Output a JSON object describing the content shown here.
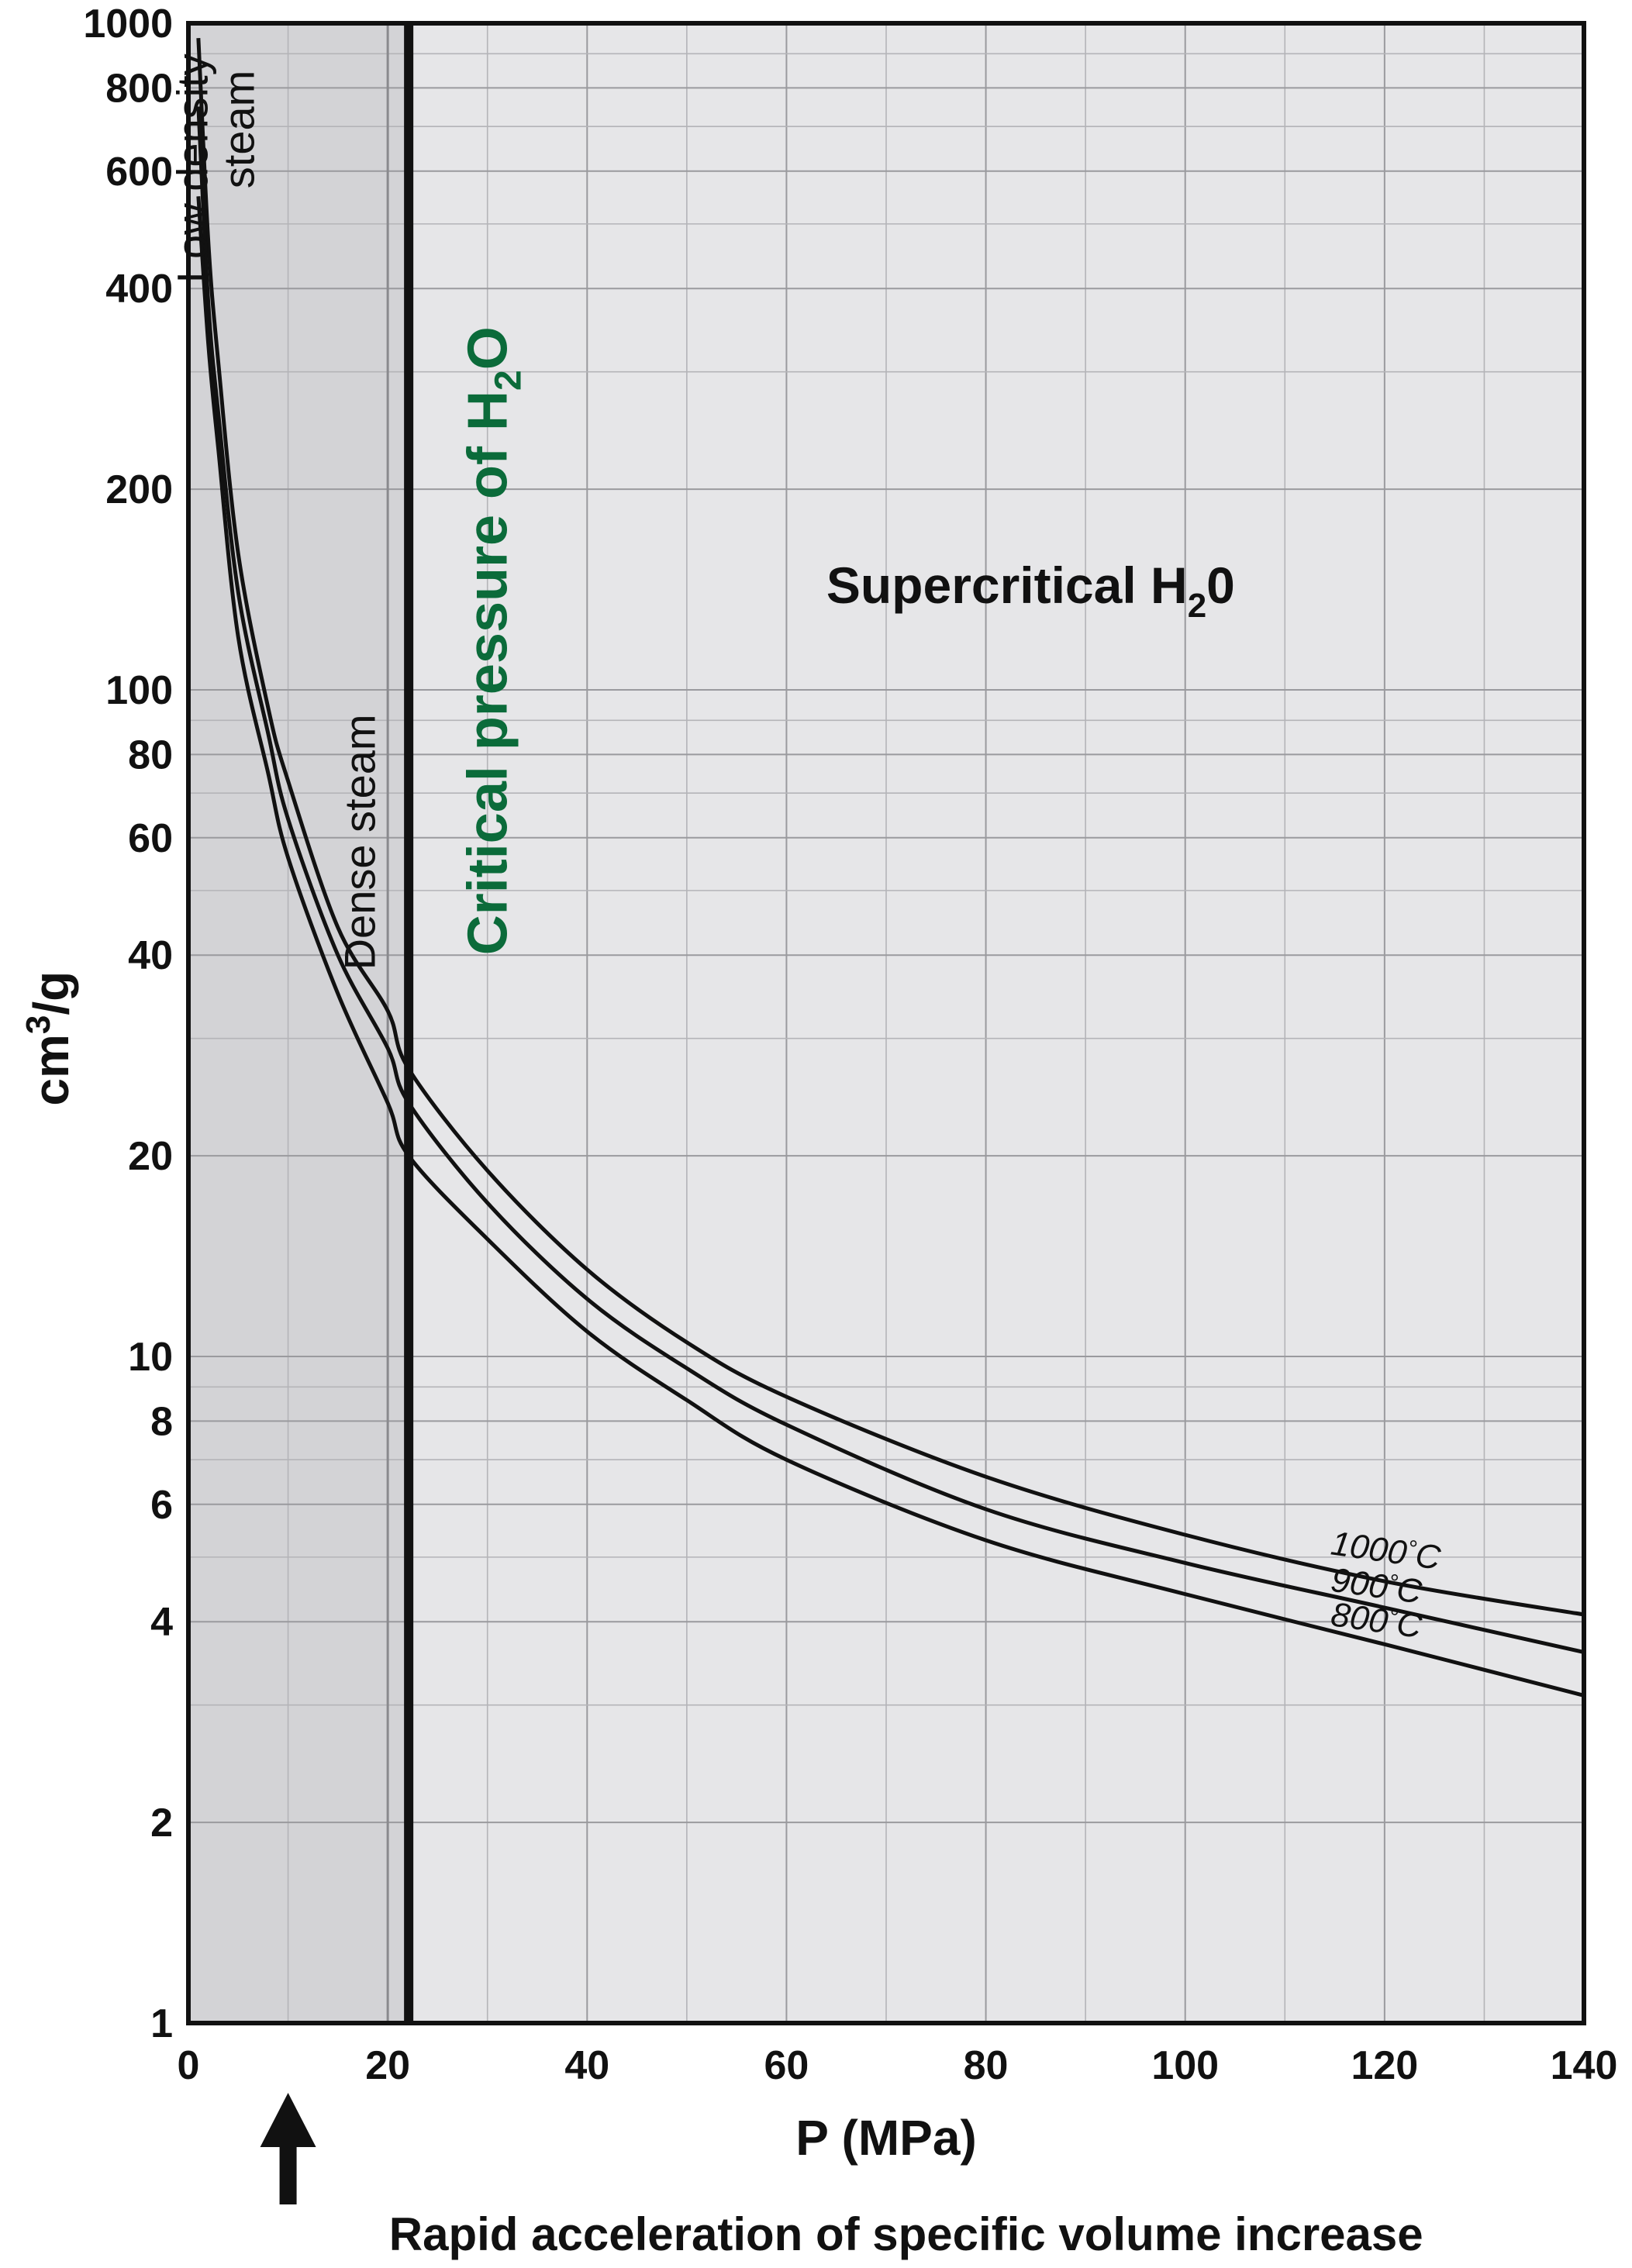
{
  "chart_data": {
    "type": "line",
    "xlabel": "P (MPa)",
    "ylabel": "cm3/g",
    "xlim": [
      0,
      140
    ],
    "ylim": [
      1,
      1000
    ],
    "y_scale": "log",
    "grid": true,
    "x_ticks": [
      "0",
      "20",
      "40",
      "60",
      "80",
      "100",
      "120",
      "140"
    ],
    "y_ticks": [
      "1",
      "2",
      "4",
      "6",
      "8",
      "10",
      "20",
      "40",
      "60",
      "80",
      "100",
      "200",
      "400",
      "600",
      "800",
      "1000"
    ],
    "series": [
      {
        "name": "1000°C",
        "x": [
          1,
          2,
          3,
          5,
          8,
          10,
          15,
          20,
          22.1,
          30,
          40,
          50,
          60,
          80,
          100,
          120,
          140
        ],
        "values": [
          950,
          470,
          310,
          160,
          94,
          73,
          44,
          33,
          27,
          19,
          13.5,
          10.5,
          8.7,
          6.6,
          5.4,
          4.6,
          4.1
        ]
      },
      {
        "name": "900°C",
        "x": [
          1,
          2,
          3,
          5,
          8,
          10,
          15,
          20,
          22.1,
          30,
          40,
          50,
          60,
          80,
          100,
          120,
          140
        ],
        "values": [
          750,
          380,
          260,
          140,
          86,
          64,
          40,
          29,
          24,
          17,
          12.2,
          9.6,
          7.9,
          5.9,
          4.9,
          4.2,
          3.6
        ]
      },
      {
        "name": "800°C",
        "x": [
          1,
          2,
          3,
          5,
          8,
          10,
          15,
          20,
          22.1,
          30,
          40,
          50,
          60,
          80,
          100,
          120,
          140
        ],
        "values": [
          550,
          330,
          230,
          120,
          75,
          56,
          35,
          24,
          20,
          15,
          10.9,
          8.6,
          7.0,
          5.3,
          4.4,
          3.7,
          3.1
        ]
      }
    ],
    "critical_pressure_x": 22.1,
    "regions": [
      {
        "label_lines": [
          "Low density",
          "steam"
        ],
        "x_from": 0,
        "x_to": 20
      },
      {
        "label_lines": [
          "Dense steam"
        ],
        "x_from": 20,
        "x_to": 22.1
      }
    ],
    "annotations": {
      "critical": {
        "text": "Critical pressure of H",
        "sub": "2",
        "tail": "O",
        "color": "#0b6b3a"
      },
      "supercritical": {
        "text": "Supercritical H",
        "sub": "2",
        "tail": "0"
      },
      "arrow_x": 10,
      "arrow_text": "Rapid acceleration of specific volume increase"
    },
    "colors": {
      "region_low": "#d3d3d6",
      "region_plot": "#e6e6e8",
      "critical_text": "#0b6b3a"
    }
  }
}
